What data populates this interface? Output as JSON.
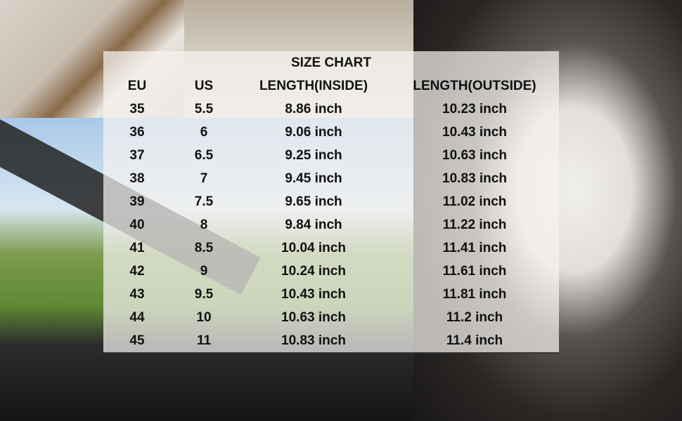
{
  "title": "SIZE CHART",
  "headers": [
    "EU",
    "US",
    "LENGTH(INSIDE)",
    "LENGTH(OUTSIDE)"
  ],
  "rows": [
    [
      "35",
      "5.5",
      "8.86 inch",
      "10.23 inch"
    ],
    [
      "36",
      "6",
      "9.06 inch",
      "10.43 inch"
    ],
    [
      "37",
      "6.5",
      "9.25 inch",
      "10.63 inch"
    ],
    [
      "38",
      "7",
      "9.45 inch",
      "10.83 inch"
    ],
    [
      "39",
      "7.5",
      "9.65 inch",
      "11.02 inch"
    ],
    [
      "40",
      "8",
      "9.84 inch",
      "11.22 inch"
    ],
    [
      "41",
      "8.5",
      "10.04 inch",
      "11.41 inch"
    ],
    [
      "42",
      "9",
      "10.24 inch",
      "11.61 inch"
    ],
    [
      "43",
      "9.5",
      "10.43 inch",
      "11.81 inch"
    ],
    [
      "44",
      "10",
      "10.63 inch",
      "11.2 inch"
    ],
    [
      "45",
      "11",
      "10.83 inch",
      "11.4 inch"
    ]
  ]
}
